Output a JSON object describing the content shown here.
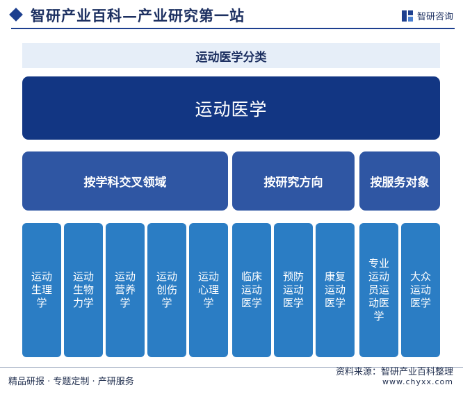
{
  "header": {
    "title": "智研产业百科—产业研究第一站",
    "brand": "智研咨询"
  },
  "diagram": {
    "subtitle": "运动医学分类",
    "root": "运动医学",
    "categories": [
      {
        "label": "按学科交叉领域",
        "children": [
          "运动生理学",
          "运动生物力学",
          "运动营养学",
          "运动创伤学",
          "运动心理学"
        ]
      },
      {
        "label": "按研究方向",
        "children": [
          "临床运动医学",
          "预防运动医学",
          "康复运动医学"
        ]
      },
      {
        "label": "按服务对象",
        "children": [
          "专业运动员运动医学",
          "大众运动医学"
        ]
      }
    ]
  },
  "footer": {
    "tagline": "精品研报 · 专题定制 · 产研服务",
    "source": "资料来源：智研产业百科整理",
    "url": "www.chyxx.com"
  },
  "colors": {
    "root": "#123683",
    "category": "#2f56a3",
    "leaf": "#2b7dc4",
    "subtitle_bg": "#e6eef8"
  }
}
